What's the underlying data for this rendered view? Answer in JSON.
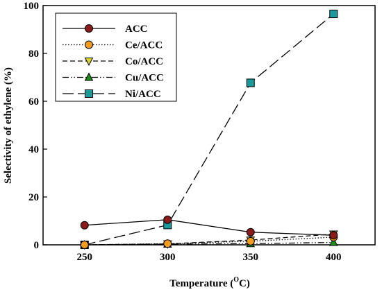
{
  "chart_data": {
    "type": "line",
    "xlabel": "Temperature (",
    "xlabel_sup": "O",
    "xlabel_suffix": "C)",
    "ylabel": "Selectivity of ethylene (%)",
    "x": [
      250,
      300,
      350,
      400
    ],
    "xticks": [
      "250",
      "300",
      "350",
      "400"
    ],
    "yticks": [
      "0",
      "20",
      "40",
      "60",
      "80",
      "100"
    ],
    "xlim": [
      225,
      425
    ],
    "ylim": [
      0,
      100
    ],
    "legend_position": "top-left",
    "series": [
      {
        "name": "ACC",
        "values": [
          8.2,
          10.5,
          5.3,
          4.0
        ],
        "line": "solid",
        "marker": "circle",
        "color": "#8b1a1a"
      },
      {
        "name": "Ce/ACC",
        "values": [
          0.0,
          0.5,
          1.5,
          3.2
        ],
        "line": "dotted",
        "marker": "circle",
        "color": "#f39c1e"
      },
      {
        "name": "Co/ACC",
        "values": [
          0.0,
          0.4,
          2.0,
          4.5
        ],
        "line": "dashed",
        "marker": "triangle-down",
        "color": "#d8d430"
      },
      {
        "name": "Cu/ACC",
        "values": [
          0.0,
          0.3,
          0.5,
          1.0
        ],
        "line": "dash-dot-dot",
        "marker": "triangle-up",
        "color": "#1e8a1e"
      },
      {
        "name": "Ni/ACC",
        "values": [
          0.0,
          8.3,
          67.7,
          96.5
        ],
        "line": "long-dash",
        "marker": "square",
        "color": "#1a9a9a"
      }
    ]
  }
}
